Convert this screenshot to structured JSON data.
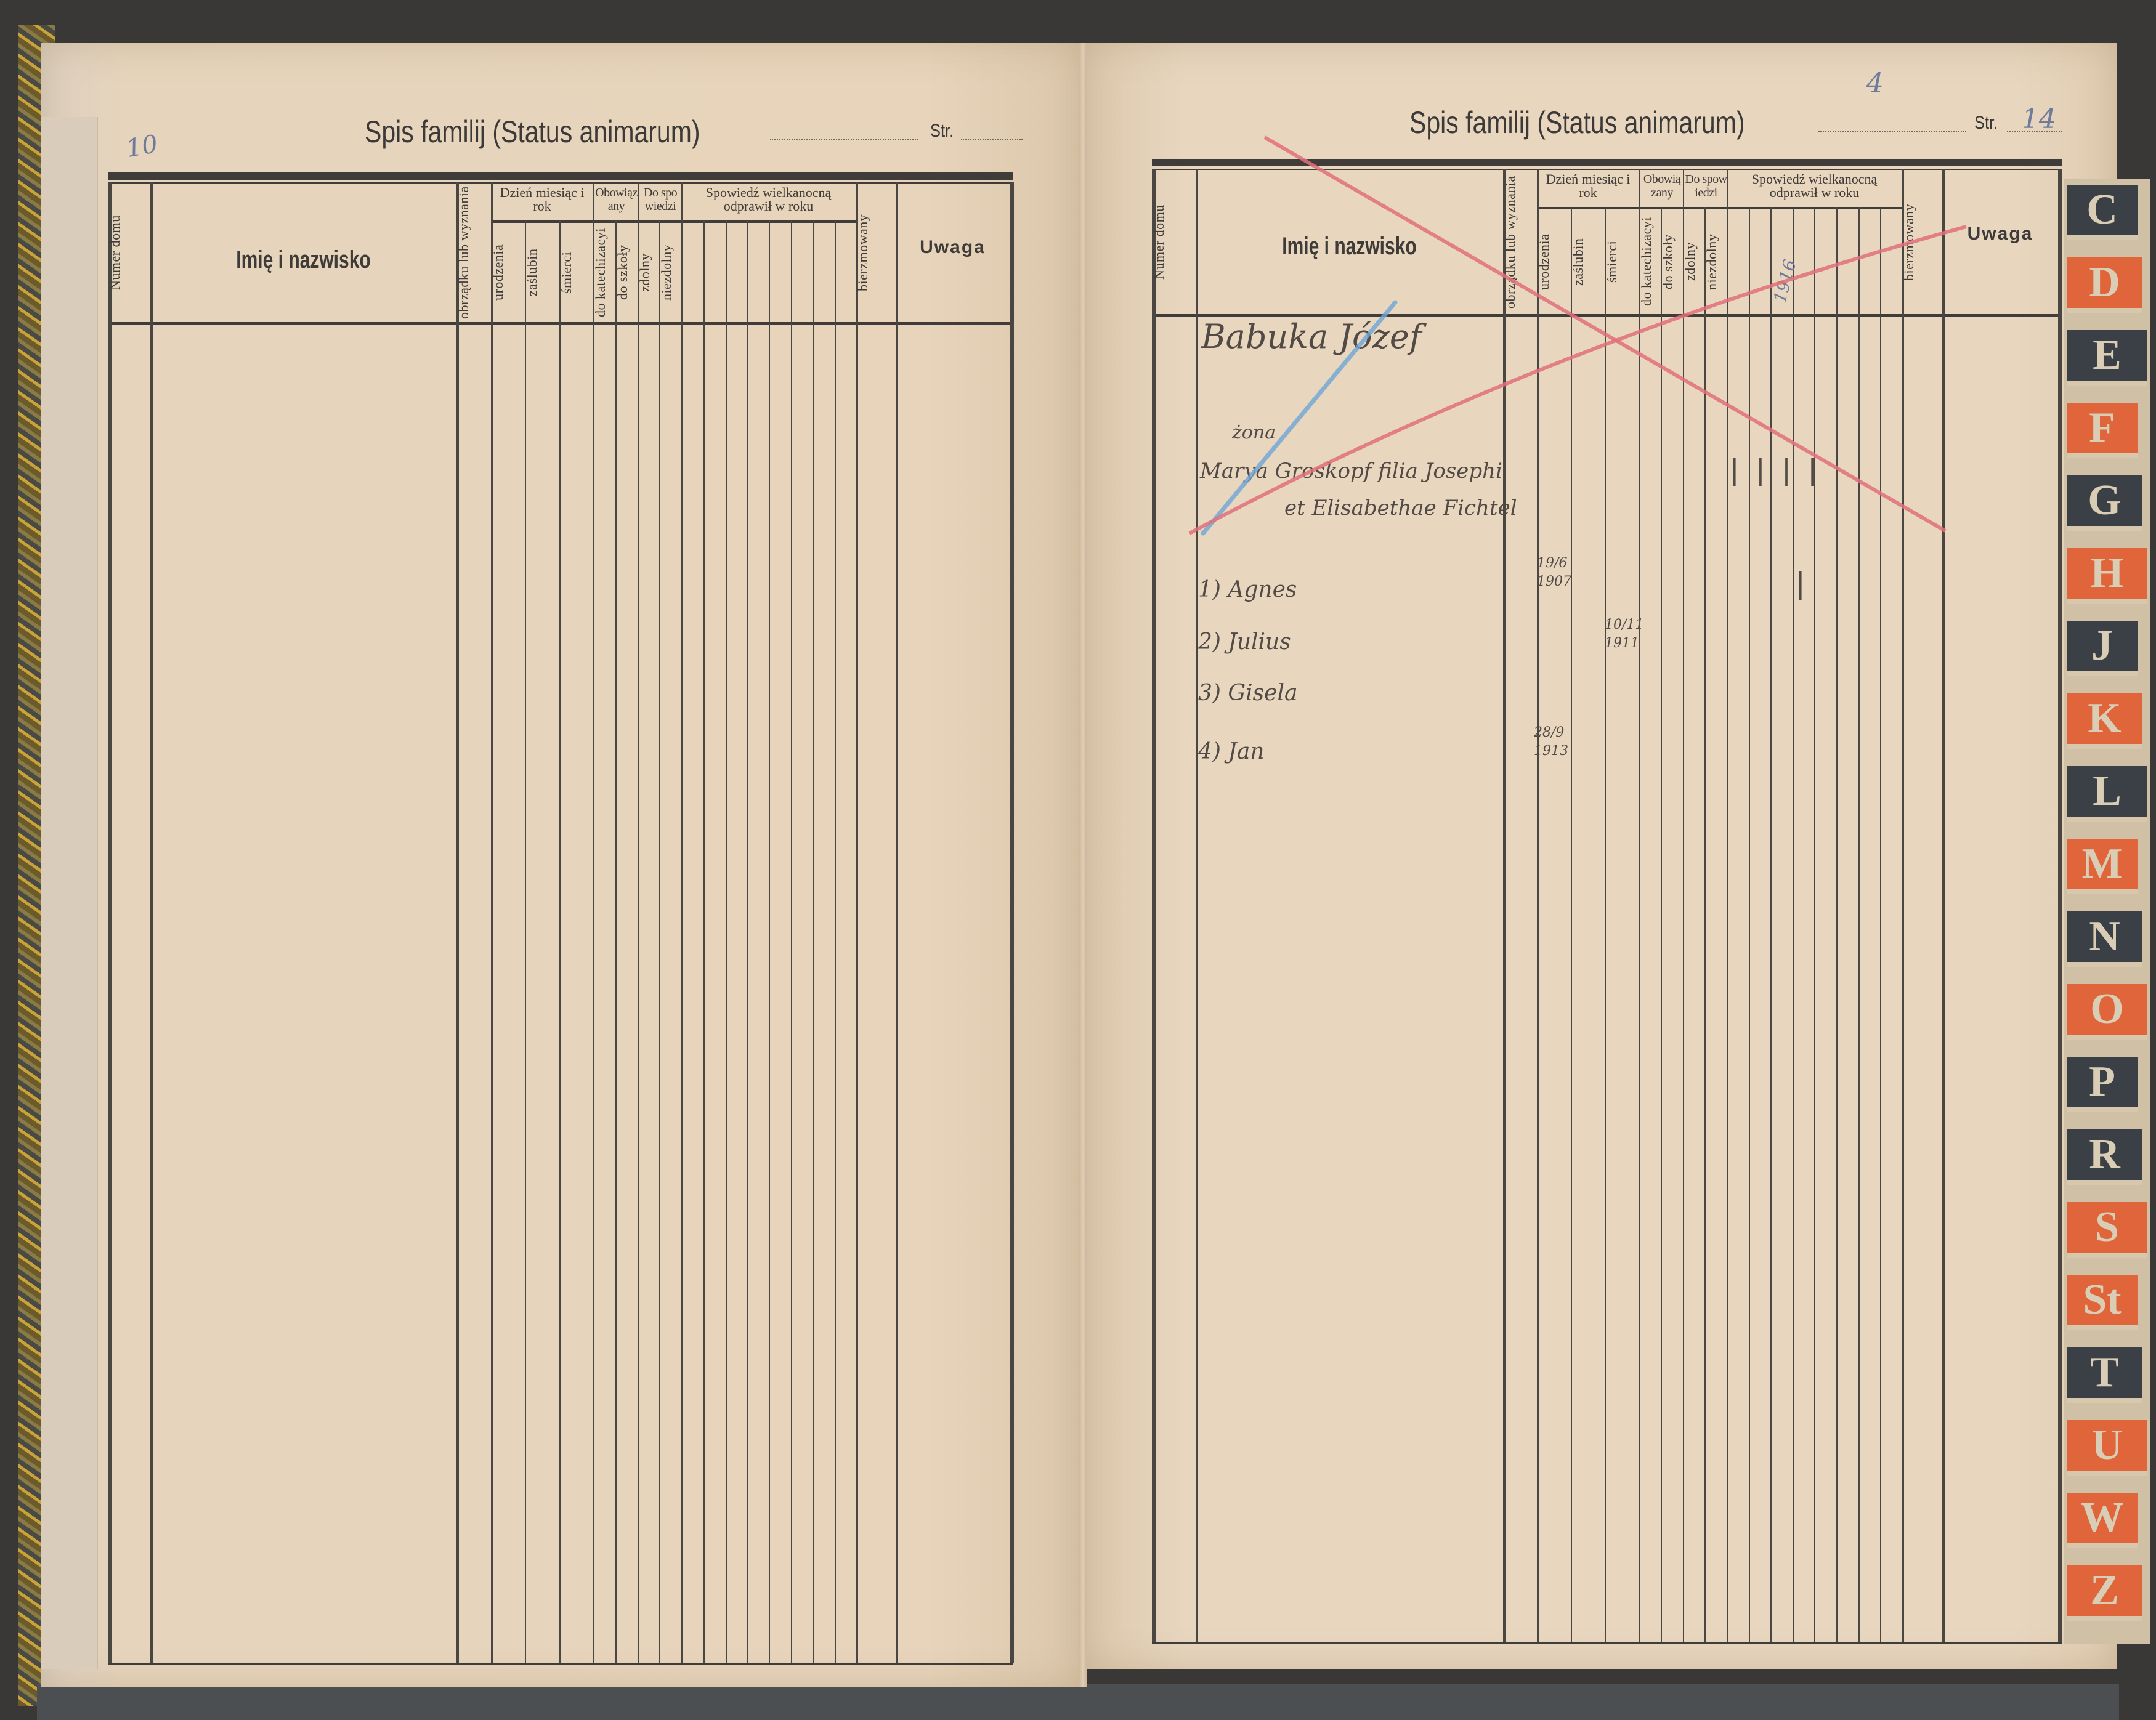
{
  "colors": {
    "paper": "#e6d3ba",
    "ink": "#3e3b38",
    "red_pencil": "#e0707a",
    "blue_pencil": "#6fa6d6",
    "tab_dark": "#3b4046",
    "tab_orange": "#e0653a"
  },
  "form": {
    "title": "Spis familij (Status animarum)",
    "str_label": "Str.",
    "columns": {
      "numer_domu": "Numer domu",
      "imie": "Imię i nazwisko",
      "obrzadek": "obrządku lub wyznania",
      "dzien_group": "Dzień miesiąc i rok",
      "urodzenia": "urodzenia",
      "zaslubin": "zaślubin",
      "smierci": "śmierci",
      "obowiazany_group": "Obowiązany",
      "do_katechizacyi": "do katechizacyi",
      "do_szkoly": "do szkoły",
      "do_spowiedzi_group": "Do spowiedzi",
      "zdolny": "zdolny",
      "niezdolny": "niezdolny",
      "spowiedz_group": "Spowiedź wielkanocną odprawił w roku",
      "bierzmowany": "bierzmowany",
      "uwaga": "Uwaga"
    }
  },
  "left_page": {
    "handwritten_page_number": "10"
  },
  "right_page": {
    "handwritten_page_number": "14",
    "handwritten_corner_note": "4",
    "crossed_out": true,
    "entries": {
      "head": "Babuka Józef",
      "wife_label": "żona",
      "wife": "Marya Groskopf filia Josephi",
      "wife_parents": "et Elisabethae Fichtel",
      "children": [
        {
          "label": "1) Agnes",
          "birth": "19/6 1907"
        },
        {
          "label": "2) Julius",
          "death": "10/11 1911"
        },
        {
          "label": "3) Gisela"
        },
        {
          "label": "4) Jan",
          "birth": "28/9 1913"
        }
      ],
      "easter_confession_year": "1916",
      "tally_marks": "| | | |",
      "tally_mark_child": "|"
    }
  },
  "index_tabs": [
    {
      "letter": "C",
      "color": "dark"
    },
    {
      "letter": "D",
      "color": "orange"
    },
    {
      "letter": "E",
      "color": "dark"
    },
    {
      "letter": "F",
      "color": "orange"
    },
    {
      "letter": "G",
      "color": "dark"
    },
    {
      "letter": "H",
      "color": "orange"
    },
    {
      "letter": "J",
      "color": "dark"
    },
    {
      "letter": "K",
      "color": "orange"
    },
    {
      "letter": "L",
      "color": "dark"
    },
    {
      "letter": "M",
      "color": "orange"
    },
    {
      "letter": "N",
      "color": "dark"
    },
    {
      "letter": "O",
      "color": "orange"
    },
    {
      "letter": "P",
      "color": "dark"
    },
    {
      "letter": "R",
      "color": "dark"
    },
    {
      "letter": "S",
      "color": "orange"
    },
    {
      "letter": "St",
      "color": "orange"
    },
    {
      "letter": "T",
      "color": "dark"
    },
    {
      "letter": "U",
      "color": "orange"
    },
    {
      "letter": "W",
      "color": "orange"
    },
    {
      "letter": "Z",
      "color": "orange"
    }
  ]
}
